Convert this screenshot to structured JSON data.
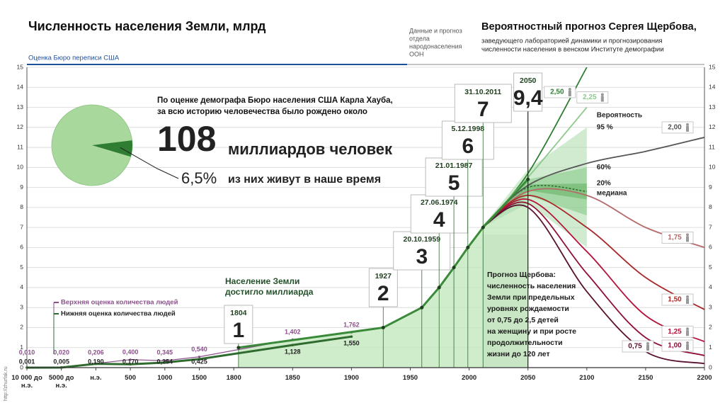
{
  "chart_data": {
    "type": "line",
    "title": "Численность населения Земли, млрд",
    "census_label": "Оценка Бюро переписи США",
    "un_label": [
      "Данные и прогноз",
      "отдела",
      "народонаселения",
      "ООН"
    ],
    "forecast_title": "Вероятностный прогноз Сергея Щербова,",
    "forecast_subtitle": [
      "заведующего лабораторией динамики и прогнозирования",
      "численности населения в венском Институте демографии"
    ],
    "xlim": [
      -10000,
      2200
    ],
    "xticks": [
      {
        "value": -10000,
        "label": "10 000 до н.э."
      },
      {
        "value": -5000,
        "label": "5000 до н.э."
      },
      {
        "value": 0,
        "label": "н.э."
      },
      500,
      1000,
      1500,
      1800,
      1850,
      1900,
      1950,
      2000,
      2050,
      2100,
      2150,
      2200
    ],
    "ylim": [
      0,
      15
    ],
    "yticks": [
      0,
      1,
      2,
      3,
      4,
      5,
      6,
      7,
      8,
      9,
      10,
      11,
      12,
      13,
      14,
      15
    ],
    "grid": true,
    "history": {
      "x": [
        -10000,
        -5000,
        0,
        500,
        1000,
        1500,
        1850,
        1900
      ],
      "series": [
        {
          "name": "Верхняя оценка количества людей",
          "color": "#8b4f8b",
          "values": [
            0.01,
            0.02,
            0.206,
            0.4,
            0.345,
            0.54,
            1.402,
            1.762
          ],
          "value_labels": [
            "0,010",
            "0,020",
            "0,206",
            "0,400",
            "0,345",
            "0,540",
            "1,402",
            "1,762"
          ]
        },
        {
          "name": "Нижняя оценка количества людей",
          "color": "#2f6b2f",
          "values": [
            0.001,
            0.005,
            0.19,
            0.17,
            0.254,
            0.425,
            1.128,
            1.55
          ],
          "value_labels": [
            "0,001",
            "0,005",
            "0,190",
            "0,170",
            "0,254",
            "0,425",
            "1,128",
            "1,550"
          ]
        }
      ]
    },
    "billion_note": [
      "Население Земли",
      "достигло миллиарда"
    ],
    "milestones": {
      "color": "#3a8a3a",
      "x": [
        1804,
        1927,
        1959.8,
        1974.5,
        1987.05,
        1998.92,
        2011.83,
        2050
      ],
      "dates": [
        "1804",
        "1927",
        "20.10.1959",
        "27.06.1974",
        "21.01.1987",
        "5.12.1998",
        "31.10.2011",
        "2050"
      ],
      "values": [
        1,
        2,
        3,
        4,
        5,
        6,
        7,
        9.4
      ],
      "value_labels": [
        "1",
        "2",
        "3",
        "4",
        "5",
        "6",
        "7",
        "9,4"
      ]
    },
    "forecast": {
      "x": [
        2011,
        2050,
        2100,
        2150,
        2200
      ],
      "series": [
        {
          "name": "2,50",
          "color": "#2e7d32",
          "values": [
            7,
            9.7,
            15,
            null,
            null
          ]
        },
        {
          "name": "2,25",
          "color": "#8cc98c",
          "values": [
            7,
            9.5,
            13,
            null,
            null
          ]
        },
        {
          "name": "2,00",
          "color": "#555555",
          "values": [
            7,
            9.1,
            10.2,
            10.8,
            11.5
          ]
        },
        {
          "name": "1,75",
          "color": "#b56a6a",
          "values": [
            7,
            8.8,
            8.6,
            7,
            6
          ]
        },
        {
          "name": "1,50",
          "color": "#a82828",
          "values": [
            7,
            8.6,
            7,
            4.5,
            2.9
          ]
        },
        {
          "name": "1,25",
          "color": "#b4143c",
          "values": [
            7,
            8.4,
            5.8,
            2.6,
            1.3
          ]
        },
        {
          "name": "1,00",
          "color": "#8e1035",
          "values": [
            7,
            8.2,
            4.7,
            1.5,
            0.6
          ]
        },
        {
          "name": "0,75",
          "color": "#5a1030",
          "values": [
            7,
            8,
            3.8,
            0.8,
            0.2
          ]
        }
      ]
    },
    "probability": {
      "title": "Вероятность",
      "x": [
        2011,
        2050,
        2100
      ],
      "bands": [
        {
          "name": "95 %",
          "color": "#a9dba9",
          "lower": [
            7,
            8.2,
            6
          ],
          "upper": [
            7,
            9.9,
            12
          ]
        },
        {
          "name": "60%",
          "color": "#84c784",
          "lower": [
            7,
            8.6,
            7.6
          ],
          "upper": [
            7,
            9.4,
            10
          ]
        },
        {
          "name": "20%",
          "color": "#62b062",
          "lower": [
            7,
            8.85,
            8.4
          ],
          "upper": [
            7,
            9.15,
            9.2
          ]
        }
      ],
      "median": {
        "name": "медиана",
        "color": "#2f6b2f",
        "values": [
          7,
          9,
          8.8
        ]
      }
    },
    "forecast_note": [
      "Прогноз Щербова:",
      "численность населения",
      "Земли при предельных",
      "уровнях рождаемости",
      "от 0,75 до 2,5 детей",
      "на женщину и при росте",
      "продолжительности",
      "жизни до 120 лет"
    ],
    "pie": {
      "intro": [
        "По оценке демографа Бюро населения США Карла Хауба,",
        "за всю историю человечества было рождено около"
      ],
      "total": 108,
      "total_unit": "миллиардов человек",
      "value": 6.5,
      "value_label": "6,5%",
      "caption": "из них живут в наше время",
      "color": "#a8d89c",
      "slice_color": "#2e7d32"
    },
    "watermark": "http://zhurfak.ru"
  }
}
